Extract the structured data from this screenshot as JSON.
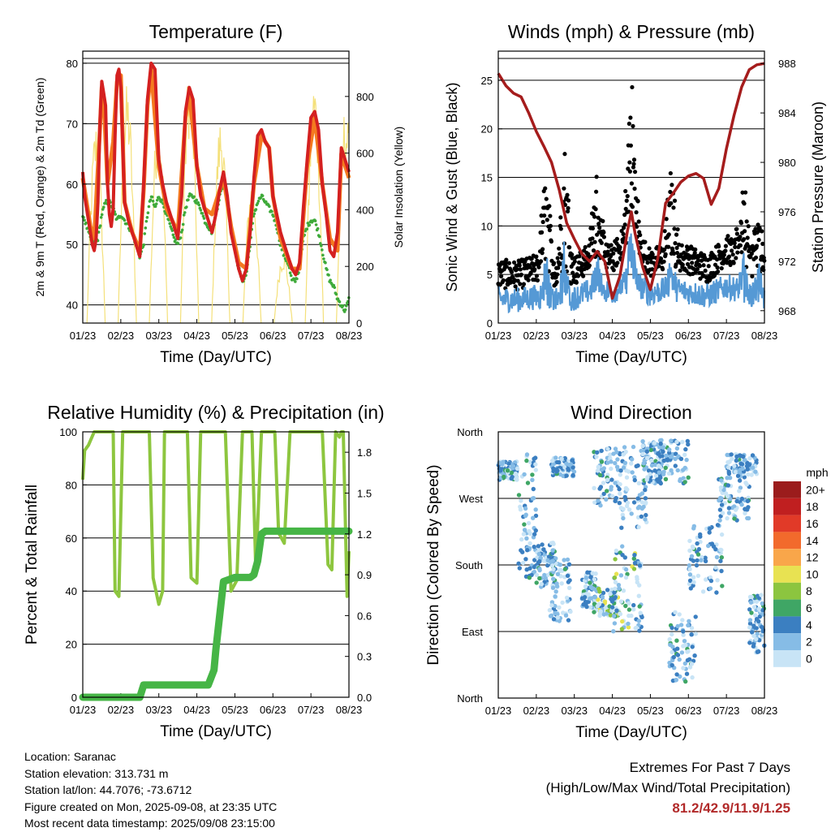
{
  "colors": {
    "red": "#d42020",
    "orange": "#f47a20",
    "dew_green": "#3faa3a",
    "yellow": "#f4e07a",
    "maroon": "#a51c1c",
    "blue": "#5599d5",
    "black": "#000000",
    "rh_green": "#8dc63f",
    "precip_green": "#46b546",
    "extremes_red": "#b22a2a"
  },
  "x_tick_labels": [
    "01/23",
    "02/23",
    "03/23",
    "04/23",
    "05/23",
    "06/23",
    "07/23",
    "08/23"
  ],
  "info": {
    "location": "Location: Saranac",
    "elevation": "Station elevation: 313.731 m",
    "latlon": "Station lat/lon: 44.7076; -73.6712",
    "created": "Figure created on Mon, 2025-09-08, at 23:35 UTC",
    "timestamp": "Most recent data timestamp: 2025/09/08 23:15:00"
  },
  "extremes": {
    "title": "Extremes For Past 7 Days",
    "subtitle": "(High/Low/Max Wind/Total Precipitation)",
    "values": "81.2/42.9/11.9/1.25"
  },
  "chart_data": [
    {
      "type": "line",
      "title": "Temperature (F)",
      "xlabel": "Time (Day/UTC)",
      "ylabel": "2m & 9m T (Red, Orange) & 2m Td (Green)",
      "y2label": "Solar Insolation (Yellow)",
      "ylim": [
        37,
        82
      ],
      "y_ticks": [
        40,
        50,
        60,
        70,
        80
      ],
      "y2lim": [
        0,
        960
      ],
      "y2_ticks": [
        0,
        200,
        400,
        600,
        800
      ],
      "grid": true,
      "series": [
        {
          "key": "t2m",
          "color": "#d42020",
          "x": [
            0,
            0.05,
            0.1,
            0.15,
            0.2,
            0.25,
            0.3,
            0.35,
            0.4,
            0.45,
            0.5,
            0.55,
            0.6,
            0.65,
            0.7,
            0.75,
            0.8,
            0.85,
            0.9,
            0.95,
            1,
            1.1,
            1.2,
            1.3,
            1.4,
            1.5,
            1.6,
            1.7,
            1.8,
            1.9,
            2,
            2.1,
            2.2,
            2.3,
            2.4,
            2.5,
            2.6,
            2.7,
            2.8,
            2.9,
            3,
            3.1,
            3.2,
            3.3,
            3.4,
            3.5,
            3.6,
            3.7,
            3.8,
            3.9,
            4,
            4.1,
            4.2,
            4.3,
            4.4,
            4.5,
            4.6,
            4.7,
            4.8,
            4.9,
            5,
            5.1,
            5.2,
            5.3,
            5.4,
            5.5,
            5.6,
            5.7,
            5.8,
            5.9,
            6,
            6.1,
            6.2,
            6.3,
            6.4,
            6.5,
            6.6,
            6.7,
            6.8,
            6.9,
            7
          ],
          "values": [
            62,
            58,
            56,
            54,
            52,
            50,
            49,
            51,
            57,
            70,
            77,
            75,
            73,
            60,
            55,
            53,
            56,
            68,
            78,
            79,
            76,
            57,
            54,
            52,
            50,
            48,
            60,
            74,
            80,
            79,
            64,
            60,
            57,
            55,
            53,
            51,
            58,
            72,
            76,
            74,
            63,
            58,
            56,
            54,
            52,
            55,
            59,
            62,
            58,
            52,
            49,
            46,
            44,
            46,
            52,
            61,
            68,
            69,
            67,
            66,
            58,
            55,
            52,
            50,
            48,
            46,
            45,
            47,
            56,
            64,
            71,
            72,
            69,
            60,
            55,
            49,
            48,
            52,
            66,
            64,
            62
          ]
        },
        {
          "key": "t9m",
          "color": "#f47a20",
          "x": [
            0,
            0.2,
            0.3,
            0.45,
            0.5,
            0.55,
            0.65,
            0.8,
            0.9,
            1,
            1.1,
            1.3,
            1.5,
            1.6,
            1.7,
            1.8,
            2,
            2.2,
            2.5,
            2.7,
            2.8,
            3,
            3.2,
            3.4,
            3.7,
            3.9,
            4.1,
            4.3,
            4.5,
            4.7,
            4.9,
            5,
            5.2,
            5.5,
            5.7,
            5.9,
            6.1,
            6.3,
            6.5,
            6.7,
            6.8,
            7
          ],
          "values": [
            61,
            53,
            51,
            69,
            76,
            74,
            60,
            67,
            77,
            78,
            57,
            52,
            49,
            59,
            73,
            79,
            63,
            56,
            52,
            71,
            75,
            63,
            56,
            55,
            61,
            53,
            47,
            46,
            60,
            68,
            66,
            58,
            51,
            46,
            46,
            63,
            71,
            60,
            51,
            49,
            65,
            61
          ]
        },
        {
          "key": "td2m",
          "color": "#3faa3a",
          "x": [
            0,
            0.1,
            0.2,
            0.3,
            0.4,
            0.5,
            0.6,
            0.7,
            0.8,
            0.9,
            1,
            1.1,
            1.2,
            1.3,
            1.4,
            1.5,
            1.6,
            1.7,
            1.8,
            1.9,
            2,
            2.1,
            2.2,
            2.3,
            2.4,
            2.5,
            2.6,
            2.7,
            2.8,
            2.9,
            3,
            3.1,
            3.2,
            3.3,
            3.4,
            3.5,
            3.6,
            3.7,
            3.8,
            3.9,
            4,
            4.1,
            4.2,
            4.3,
            4.4,
            4.5,
            4.6,
            4.7,
            4.8,
            4.9,
            5,
            5.1,
            5.2,
            5.3,
            5.4,
            5.5,
            5.6,
            5.7,
            5.8,
            5.9,
            6,
            6.1,
            6.2,
            6.3,
            6.4,
            6.5,
            6.6,
            6.7,
            6.8,
            6.9,
            7
          ],
          "values": [
            55,
            53,
            51,
            50,
            51,
            55,
            57,
            57,
            56,
            54,
            55,
            54,
            53,
            52,
            50,
            48,
            50,
            55,
            58,
            56,
            58,
            57,
            55,
            53,
            51,
            50,
            52,
            56,
            58,
            58,
            57,
            56,
            54,
            53,
            52,
            55,
            58,
            60,
            58,
            53,
            49,
            46,
            44,
            45,
            50,
            55,
            57,
            58,
            57,
            56,
            55,
            53,
            50,
            48,
            47,
            44,
            44,
            46,
            51,
            53,
            54,
            54,
            52,
            49,
            46,
            44,
            43,
            41,
            40,
            39,
            41
          ]
        }
      ],
      "insolation": {
        "color": "#f4e07a",
        "peaks": [
          720,
          850,
          780,
          930,
          740,
          520,
          260,
          880,
          780
        ]
      }
    },
    {
      "type": "line",
      "title": "Winds (mph) & Pressure (mb)",
      "xlabel": "Time (Day/UTC)",
      "ylabel": "Sonic Wind & Gust (Blue, Black)",
      "y2label": "Station Pressure (Maroon)",
      "ylim": [
        0,
        28
      ],
      "y_ticks": [
        0,
        5,
        10,
        15,
        20,
        25
      ],
      "y2lim": [
        967,
        989
      ],
      "y2_ticks": [
        968,
        972,
        976,
        980,
        984,
        988
      ],
      "grid": true,
      "pressure": {
        "color": "#a51c1c",
        "x": [
          0,
          0.2,
          0.4,
          0.6,
          0.8,
          1,
          1.2,
          1.4,
          1.6,
          1.8,
          2,
          2.2,
          2.4,
          2.6,
          2.8,
          3,
          3.2,
          3.4,
          3.5,
          3.6,
          3.8,
          4,
          4.2,
          4.4,
          4.6,
          4.8,
          5,
          5.2,
          5.4,
          5.6,
          5.8,
          6,
          6.2,
          6.4,
          6.6,
          6.8,
          7
        ],
        "values": [
          987.2,
          986.2,
          985.6,
          985.3,
          984.0,
          982.5,
          981.3,
          980.0,
          977.8,
          975.1,
          973.8,
          972.6,
          972.0,
          972.8,
          972.0,
          969.0,
          970.8,
          974.5,
          976.0,
          974.2,
          971.5,
          969.7,
          972.3,
          976.7,
          977.5,
          978.4,
          978.9,
          979.1,
          978.7,
          976.6,
          977.9,
          981.1,
          983.8,
          986.1,
          987.5,
          987.9,
          988.0
        ]
      },
      "wind_baseline": {
        "color": "#5599d5",
        "x": [
          0,
          0.5,
          1,
          1.5,
          2,
          2.5,
          3,
          3.5,
          4,
          4.5,
          5,
          5.5,
          6,
          6.5,
          7
        ],
        "values": [
          2.5,
          2.4,
          2.7,
          2.3,
          2.6,
          3.5,
          3.2,
          4.5,
          3.0,
          3.6,
          3.2,
          2.8,
          3.8,
          3.2,
          2.5
        ]
      },
      "gust_baseline": {
        "color": "#000000",
        "x": [
          0,
          0.5,
          1,
          1.5,
          2,
          2.5,
          3,
          3.5,
          4,
          4.5,
          5,
          5.5,
          6,
          6.5,
          7
        ],
        "values": [
          4.5,
          4.3,
          5.0,
          4.4,
          4.8,
          6.5,
          6.0,
          9.0,
          5.5,
          6.4,
          6.0,
          5.0,
          7.0,
          6.0,
          4.0
        ]
      },
      "gust_max": 27.2
    },
    {
      "type": "line",
      "title": "Relative Humidity (%) & Precipitation (in)",
      "xlabel": "Time (Day/UTC)",
      "ylabel": "Percent & Total Rainfall",
      "y2label": "",
      "ylim": [
        0,
        100
      ],
      "y_ticks": [
        0,
        20,
        40,
        60,
        80,
        100
      ],
      "y2lim": [
        0,
        1.95
      ],
      "y2_ticks": [
        0.0,
        0.3,
        0.6,
        0.9,
        1.2,
        1.5,
        1.8
      ],
      "y2_tick_labels": [
        "0.0",
        "0.3",
        "0.6",
        "0.9",
        "1.2",
        "1.5",
        "1.8"
      ],
      "grid": true,
      "rh": {
        "color": "#8dc63f",
        "x": [
          0,
          0.05,
          0.15,
          0.3,
          0.5,
          0.6,
          0.7,
          0.8,
          0.85,
          0.95,
          1.05,
          1.2,
          1.3,
          1.4,
          1.6,
          1.75,
          1.85,
          2,
          2.1,
          2.15,
          2.3,
          2.5,
          2.75,
          2.85,
          3,
          3.1,
          3.3,
          3.5,
          3.65,
          3.75,
          3.9,
          4.05,
          4.2,
          4.3,
          4.45,
          4.55,
          4.7,
          4.85,
          4.95,
          5.05,
          5.15,
          5.3,
          5.45,
          5.55,
          5.65,
          5.8,
          5.95,
          6.05,
          6.1,
          6.3,
          6.45,
          6.55,
          6.65,
          6.75,
          6.8,
          6.85,
          6.95,
          7
        ],
        "values": [
          82,
          93,
          95,
          100,
          100,
          100,
          100,
          100,
          40,
          38,
          100,
          100,
          100,
          100,
          100,
          100,
          45,
          35,
          40,
          100,
          100,
          100,
          100,
          45,
          43,
          100,
          100,
          100,
          100,
          100,
          40,
          44,
          100,
          100,
          100,
          48,
          100,
          100,
          100,
          100,
          62,
          58,
          100,
          100,
          100,
          100,
          100,
          100,
          100,
          100,
          50,
          48,
          100,
          98,
          100,
          100,
          38,
          55
        ]
      },
      "precip": {
        "color": "#46b546",
        "x": [
          0,
          1.5,
          1.6,
          3.3,
          3.45,
          3.5,
          3.6,
          3.7,
          4,
          4.4,
          4.5,
          4.6,
          4.7,
          4.8,
          7
        ],
        "values": [
          0.0,
          0.0,
          0.09,
          0.09,
          0.2,
          0.35,
          0.6,
          0.85,
          0.88,
          0.88,
          0.9,
          1.0,
          1.2,
          1.22,
          1.22
        ]
      }
    },
    {
      "type": "scatter",
      "title": "Wind Direction",
      "xlabel": "Time (Day/UTC)",
      "ylabel": "Direction (Colored By Speed)",
      "ylim": [
        0,
        360
      ],
      "y_tick_labels": [
        "North",
        "East",
        "South",
        "West",
        "North"
      ],
      "grid": true,
      "colorbar": {
        "title": "mph",
        "labels": [
          "20+",
          "18",
          "16",
          "14",
          "12",
          "10",
          "8",
          "6",
          "4",
          "2",
          "0"
        ],
        "colors": [
          "#9b1c1c",
          "#c01f20",
          "#e13a28",
          "#f26a2c",
          "#f9a64a",
          "#e8e252",
          "#8cc53f",
          "#3fa665",
          "#3b7fc1",
          "#86bce6",
          "#c8e4f6"
        ]
      },
      "clusters": [
        {
          "x": [
            0,
            0.5
          ],
          "dir": [
            295,
            320
          ]
        },
        {
          "x": [
            0.5,
            1.0
          ],
          "dir": [
            160,
            330
          ]
        },
        {
          "x": [
            1.0,
            1.5
          ],
          "dir": [
            150,
            210
          ]
        },
        {
          "x": [
            1.4,
            2.0
          ],
          "dir": [
            300,
            325
          ]
        },
        {
          "x": [
            1.35,
            1.9
          ],
          "dir": [
            100,
            190
          ]
        },
        {
          "x": [
            2.2,
            2.6
          ],
          "dir": [
            120,
            170
          ]
        },
        {
          "x": [
            2.5,
            3.2
          ],
          "dir": [
            260,
            340
          ]
        },
        {
          "x": [
            2.5,
            3.2
          ],
          "dir": [
            110,
            150
          ]
        },
        {
          "x": [
            3.2,
            3.9
          ],
          "dir": [
            230,
            340
          ]
        },
        {
          "x": [
            3.0,
            3.8
          ],
          "dir": [
            90,
            210
          ]
        },
        {
          "x": [
            3.8,
            4.3
          ],
          "dir": [
            290,
            350
          ]
        },
        {
          "x": [
            4.2,
            5.0
          ],
          "dir": [
            290,
            350
          ]
        },
        {
          "x": [
            4.5,
            5.2
          ],
          "dir": [
            20,
            120
          ]
        },
        {
          "x": [
            5.0,
            5.9
          ],
          "dir": [
            140,
            240
          ]
        },
        {
          "x": [
            5.8,
            6.6
          ],
          "dir": [
            240,
            300
          ]
        },
        {
          "x": [
            6.0,
            6.8
          ],
          "dir": [
            300,
            330
          ]
        },
        {
          "x": [
            6.6,
            7.0
          ],
          "dir": [
            60,
            140
          ]
        }
      ]
    }
  ]
}
